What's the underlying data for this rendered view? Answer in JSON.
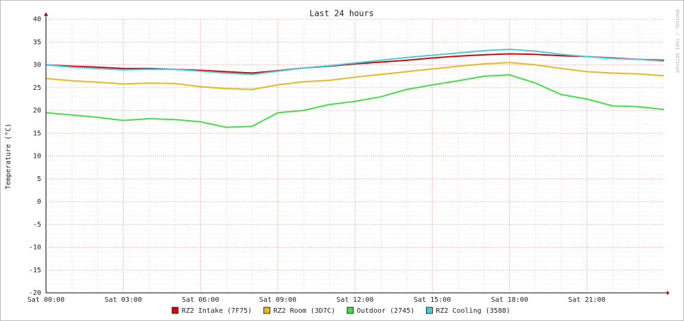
{
  "chart_data": {
    "type": "line",
    "title": "Last 24 hours",
    "y_label": "Temperature (°C)",
    "watermark": "RRDTOOL / TOBI OETIKER",
    "x": [
      0,
      1,
      2,
      3,
      4,
      5,
      6,
      7,
      8,
      9,
      10,
      11,
      12,
      13,
      14,
      15,
      16,
      17,
      18,
      19,
      20,
      21,
      22,
      23,
      24
    ],
    "xlim": [
      0,
      24
    ],
    "xticks": [
      {
        "value": 0,
        "label": "Sat 00:00"
      },
      {
        "value": 3,
        "label": "Sat 03:00"
      },
      {
        "value": 6,
        "label": "Sat 06:00"
      },
      {
        "value": 9,
        "label": "Sat 09:00"
      },
      {
        "value": 12,
        "label": "Sat 12:00"
      },
      {
        "value": 15,
        "label": "Sat 15:00"
      },
      {
        "value": 18,
        "label": "Sat 18:00"
      },
      {
        "value": 21,
        "label": "Sat 21:00"
      }
    ],
    "ylim": [
      -20,
      40
    ],
    "yticks": [
      -20,
      -15,
      -10,
      -5,
      0,
      5,
      10,
      15,
      20,
      25,
      30,
      35,
      40
    ],
    "grid": true,
    "series": [
      {
        "name": "RZ2 Intake (7F75)",
        "color": "#dd0000",
        "values": [
          30,
          29.7,
          29.5,
          29.2,
          29.2,
          29,
          28.8,
          28.5,
          28.2,
          28.7,
          29.3,
          29.7,
          30.2,
          30.6,
          31,
          31.5,
          31.9,
          32.2,
          32.4,
          32.3,
          32,
          31.8,
          31.5,
          31.2,
          31
        ]
      },
      {
        "name": "RZ2 Room (3D7C)",
        "color": "#e6b820",
        "values": [
          27,
          26.5,
          26.2,
          25.8,
          26,
          25.9,
          25.2,
          24.8,
          24.6,
          25.6,
          26.3,
          26.6,
          27.3,
          27.9,
          28.5,
          29.1,
          29.7,
          30.2,
          30.5,
          30,
          29.2,
          28.5,
          28.2,
          28,
          27.6
        ]
      },
      {
        "name": "Outdoor (2745)",
        "color": "#44dd44",
        "values": [
          19.5,
          19,
          18.5,
          17.8,
          18.2,
          18,
          17.5,
          16.3,
          16.5,
          19.5,
          20,
          21.3,
          22,
          23,
          24.6,
          25.6,
          26.5,
          27.5,
          27.8,
          26,
          23.5,
          22.5,
          21,
          20.8,
          20.2
        ]
      },
      {
        "name": "RZ2 Cooling (3588)",
        "color": "#44ccdd",
        "values": [
          30,
          29.5,
          29.2,
          28.9,
          29,
          29,
          28.6,
          28.2,
          27.9,
          28.6,
          29.3,
          29.8,
          30.4,
          31,
          31.6,
          32.1,
          32.6,
          33.1,
          33.4,
          33,
          32.3,
          31.8,
          31.4,
          31.2,
          30.8
        ]
      }
    ]
  }
}
